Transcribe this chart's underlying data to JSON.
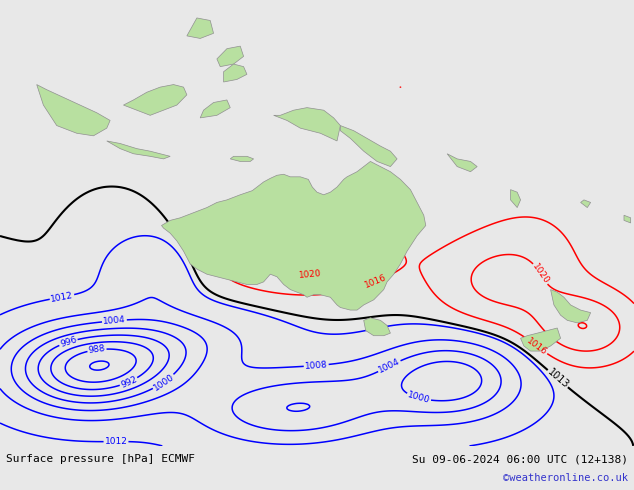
{
  "title_left": "Surface pressure [hPa] ECMWF",
  "title_right": "Su 09-06-2024 06:00 UTC (12+138)",
  "watermark": "©weatheronline.co.uk",
  "bg_color": "#d8d8d8",
  "ocean_color": "#d0d0d0",
  "land_color": "#b8e0a0",
  "land_edge_color": "#909090",
  "fig_width": 6.34,
  "fig_height": 4.9,
  "dpi": 100,
  "bottom_bar_color": "#e8e8e8",
  "watermark_color": "#3333cc",
  "lon_min": 90,
  "lon_max": 185,
  "lat_min": -65,
  "lat_max": 22
}
